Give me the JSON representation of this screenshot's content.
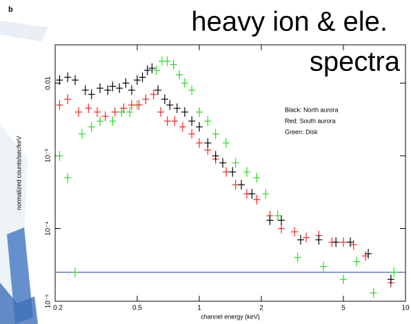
{
  "chart_data": {
    "type": "errorcross",
    "panel_label": "b",
    "title": "heavy ion & ele.",
    "subtitle": "spectra",
    "x_label": "channel energy (keV)",
    "y_label": "normalized counts/sec/keV",
    "annotations": [
      "Black: North aurora",
      "Red: South aurora",
      "Green: Disk"
    ],
    "log_x": true,
    "log_y": true,
    "xlim": [
      0.2,
      10
    ],
    "xticks": [
      0.2,
      0.5,
      1,
      2,
      5,
      10
    ],
    "ylim": [
      1e-05,
      0.0336
    ],
    "yticks": [
      {
        "value": 1e-05,
        "label": "10⁻⁵"
      },
      {
        "value": 0.0001,
        "label": "10⁻⁴"
      },
      {
        "value": 0.001,
        "label": "10⁻³"
      },
      {
        "value": 0.01,
        "label": "0.01"
      }
    ],
    "hline": {
      "value": 2.5e-05,
      "color": "#3a5fc8"
    },
    "series": [
      {
        "color": "#000000",
        "x": [
          0.21,
          0.23,
          0.25,
          0.28,
          0.3,
          0.33,
          0.36,
          0.38,
          0.41,
          0.44,
          0.47,
          0.5,
          0.53,
          0.56,
          0.59,
          0.63,
          0.68,
          0.72,
          0.78,
          0.85,
          0.92,
          1.0,
          1.1,
          1.2,
          1.3,
          1.45,
          1.6,
          1.8,
          2.2,
          2.5,
          3.1,
          3.8,
          4.6,
          5.4,
          6.6,
          8.5
        ],
        "values": [
          0.011,
          0.012,
          0.011,
          0.008,
          0.007,
          0.0085,
          0.008,
          0.009,
          0.0085,
          0.01,
          0.008,
          0.011,
          0.012,
          0.015,
          0.016,
          0.008,
          0.006,
          0.005,
          0.0045,
          0.004,
          0.003,
          0.0025,
          0.0015,
          0.001,
          0.0008,
          0.0006,
          0.0004,
          0.0003,
          0.00013,
          0.00013,
          7e-05,
          7e-05,
          6.5e-05,
          6.5e-05,
          4.5e-05,
          2e-05
        ]
      },
      {
        "color": "#ff2020",
        "x": [
          0.21,
          0.23,
          0.26,
          0.29,
          0.32,
          0.35,
          0.39,
          0.43,
          0.47,
          0.51,
          0.55,
          0.6,
          0.65,
          0.7,
          0.76,
          0.83,
          0.92,
          1.0,
          1.1,
          1.2,
          1.35,
          1.5,
          1.7,
          1.9,
          2.2,
          2.5,
          2.9,
          3.3,
          3.8,
          4.4,
          5.0,
          5.6,
          6.4,
          8.5
        ],
        "values": [
          0.005,
          0.006,
          0.004,
          0.0045,
          0.004,
          0.0035,
          0.004,
          0.0045,
          0.005,
          0.005,
          0.006,
          0.007,
          0.004,
          0.003,
          0.003,
          0.0025,
          0.002,
          0.0015,
          0.0012,
          0.0009,
          0.0006,
          0.0004,
          0.0003,
          0.00025,
          0.00015,
          0.0001,
          9e-05,
          7.5e-05,
          8e-05,
          6.5e-05,
          6.5e-05,
          6e-05,
          4.2e-05,
          1.8e-05
        ]
      },
      {
        "color": "#22dd22",
        "x": [
          0.21,
          0.23,
          0.25,
          0.27,
          0.3,
          0.33,
          0.38,
          0.42,
          0.46,
          0.5,
          0.55,
          0.62,
          0.66,
          0.7,
          0.75,
          0.8,
          0.85,
          0.92,
          1.0,
          1.1,
          1.2,
          1.35,
          1.5,
          1.7,
          1.9,
          2.1,
          2.4,
          3.0,
          4.0,
          5.0,
          5.8,
          7.0,
          8.8
        ],
        "values": [
          0.001,
          0.0005,
          2.5e-05,
          0.002,
          0.0025,
          0.003,
          0.003,
          0.004,
          0.004,
          0.005,
          0.006,
          0.015,
          0.02,
          0.02,
          0.018,
          0.013,
          0.01,
          0.008,
          0.004,
          0.003,
          0.002,
          0.0015,
          0.0008,
          0.0006,
          0.0005,
          0.0003,
          0.00015,
          4e-05,
          3e-05,
          2e-05,
          3.5e-05,
          1.3e-05,
          2.5e-05
        ]
      }
    ]
  }
}
